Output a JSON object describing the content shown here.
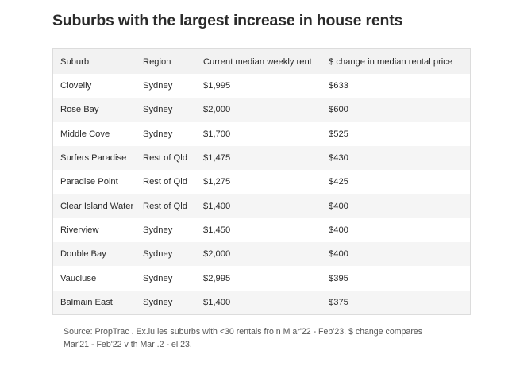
{
  "page": {
    "title": "Suburbs with the largest increase in house rents",
    "note_line1": "Source: PropTrac . Ex.lu les suburbs with <30 rentals fro n M ar'22 - Feb'23. $ change compares",
    "note_line2": "Mar'21 - Feb'22 v th Mar .2 -  el 23."
  },
  "colors": {
    "header_bg": "#f2f2f2",
    "alt_row_bg": "#f5f5f5",
    "border": "#dcdcdc",
    "text": "#2a2a2a"
  },
  "chart_data": {
    "type": "table",
    "title": "Suburbs with the largest increase in house rents",
    "columns": [
      "Suburb",
      "Region",
      "Current median weekly rent",
      "$ change in median rental price"
    ],
    "rows": [
      [
        "Clovelly",
        "Sydney",
        "$1,995",
        "$633"
      ],
      [
        "Rose Bay",
        "Sydney",
        "$2,000",
        "$600"
      ],
      [
        "Middle Cove",
        "Sydney",
        "$1,700",
        "$525"
      ],
      [
        "Surfers Paradise",
        "Rest of Qld",
        "$1,475",
        "$430"
      ],
      [
        "Paradise Point",
        "Rest of Qld",
        "$1,275",
        "$425"
      ],
      [
        "Clear Island Water",
        "Rest of Qld",
        "$1,400",
        "$400"
      ],
      [
        "Riverview",
        "Sydney",
        "$1,450",
        "$400"
      ],
      [
        "Double Bay",
        "Sydney",
        "$2,000",
        "$400"
      ],
      [
        "Vaucluse",
        "Sydney",
        "$2,995",
        "$395"
      ],
      [
        "Balmain East",
        "Sydney",
        "$1,400",
        "$375"
      ]
    ]
  }
}
